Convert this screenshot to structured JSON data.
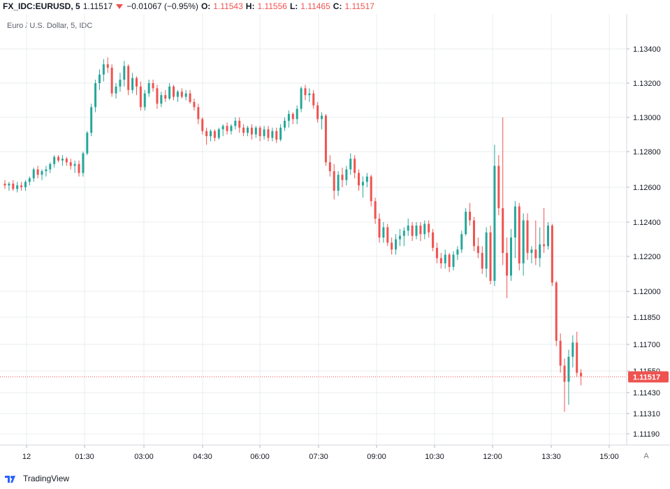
{
  "header": {
    "symbol": "FX_IDC:EURUSD, 5",
    "last": "1.11517",
    "change": "−0.01067 (−0.95%)",
    "o_label": "O:",
    "o_value": "1.11543",
    "h_label": "H:",
    "h_value": "1.11556",
    "l_label": "L:",
    "l_value": "1.11465",
    "c_label": "C:",
    "c_value": "1.11517"
  },
  "subtitle": "Euro / U.S. Dollar, 5, IDC",
  "footer": {
    "brand": "TradingView"
  },
  "controls": {
    "auto_scale": "A"
  },
  "colors": {
    "up": "#26a69a",
    "down": "#ef5350",
    "grid": "#e9ecef",
    "axis_text": "#131722",
    "price_label_bg": "#ef5350"
  },
  "chart_data": {
    "type": "candlestick",
    "symbol": "EURUSD",
    "interval": "5",
    "y_ticks": [
      {
        "value": 1.134,
        "label": "1.13400"
      },
      {
        "value": 1.132,
        "label": "1.13200"
      },
      {
        "value": 1.13,
        "label": "1.13000"
      },
      {
        "value": 1.128,
        "label": "1.12800"
      },
      {
        "value": 1.126,
        "label": "1.12600"
      },
      {
        "value": 1.124,
        "label": "1.12400"
      },
      {
        "value": 1.122,
        "label": "1.12200"
      },
      {
        "value": 1.12,
        "label": "1.12000"
      },
      {
        "value": 1.1185,
        "label": "1.11850"
      },
      {
        "value": 1.117,
        "label": "1.11700"
      },
      {
        "value": 1.1155,
        "label": "1.11550"
      },
      {
        "value": 1.1143,
        "label": "1.11430"
      },
      {
        "value": 1.1131,
        "label": "1.11310"
      },
      {
        "value": 1.1119,
        "label": "1.11190"
      }
    ],
    "x_ticks": [
      "12",
      "01:30",
      "03:00",
      "04:30",
      "06:00",
      "07:30",
      "09:00",
      "10:30",
      "12:00",
      "13:30",
      "15:00"
    ],
    "last_price": {
      "value": 1.11517,
      "label": "1.11517"
    },
    "candles": [
      [
        1.1262,
        1.1264,
        1.1259,
        1.1261
      ],
      [
        1.1261,
        1.1263,
        1.1258,
        1.1262
      ],
      [
        1.1262,
        1.1264,
        1.1258,
        1.1259
      ],
      [
        1.1259,
        1.1263,
        1.1257,
        1.1261
      ],
      [
        1.1261,
        1.1263,
        1.1258,
        1.126
      ],
      [
        1.126,
        1.1264,
        1.1258,
        1.1263
      ],
      [
        1.1263,
        1.1266,
        1.1261,
        1.1265
      ],
      [
        1.1265,
        1.1271,
        1.1263,
        1.127
      ],
      [
        1.127,
        1.1272,
        1.1265,
        1.1267
      ],
      [
        1.1267,
        1.127,
        1.1264,
        1.1269
      ],
      [
        1.1269,
        1.1272,
        1.1266,
        1.127
      ],
      [
        1.127,
        1.1274,
        1.1268,
        1.1273
      ],
      [
        1.1273,
        1.1278,
        1.1271,
        1.1277
      ],
      [
        1.1277,
        1.1278,
        1.1274,
        1.1275
      ],
      [
        1.1275,
        1.1278,
        1.1272,
        1.1276
      ],
      [
        1.1276,
        1.1277,
        1.1272,
        1.1274
      ],
      [
        1.1274,
        1.1276,
        1.127,
        1.1272
      ],
      [
        1.1272,
        1.1275,
        1.1268,
        1.1273
      ],
      [
        1.1273,
        1.1275,
        1.1266,
        1.1268
      ],
      [
        1.1268,
        1.128,
        1.1266,
        1.1279
      ],
      [
        1.1279,
        1.1292,
        1.1278,
        1.1291
      ],
      [
        1.1291,
        1.1308,
        1.1289,
        1.1306
      ],
      [
        1.1306,
        1.1322,
        1.1303,
        1.132
      ],
      [
        1.132,
        1.1328,
        1.1316,
        1.1325
      ],
      [
        1.1325,
        1.1334,
        1.1321,
        1.1331
      ],
      [
        1.1331,
        1.1335,
        1.1326,
        1.1329
      ],
      [
        1.1329,
        1.1331,
        1.1312,
        1.1314
      ],
      [
        1.1314,
        1.132,
        1.1311,
        1.1318
      ],
      [
        1.1318,
        1.1326,
        1.1315,
        1.1322
      ],
      [
        1.1322,
        1.1333,
        1.1318,
        1.133
      ],
      [
        1.133,
        1.1331,
        1.1313,
        1.1316
      ],
      [
        1.1316,
        1.1326,
        1.1314,
        1.1323
      ],
      [
        1.1323,
        1.1324,
        1.1313,
        1.1318
      ],
      [
        1.1318,
        1.1321,
        1.1304,
        1.1306
      ],
      [
        1.1306,
        1.1316,
        1.1304,
        1.1314
      ],
      [
        1.1314,
        1.1322,
        1.1312,
        1.132
      ],
      [
        1.132,
        1.1322,
        1.1315,
        1.1317
      ],
      [
        1.1317,
        1.1319,
        1.1305,
        1.1308
      ],
      [
        1.1308,
        1.1315,
        1.1306,
        1.1313
      ],
      [
        1.1313,
        1.1316,
        1.1309,
        1.1311
      ],
      [
        1.1311,
        1.132,
        1.131,
        1.1318
      ],
      [
        1.1318,
        1.1319,
        1.131,
        1.1312
      ],
      [
        1.1312,
        1.1316,
        1.1309,
        1.1315
      ],
      [
        1.1315,
        1.1317,
        1.1311,
        1.1312
      ],
      [
        1.1312,
        1.1316,
        1.131,
        1.1314
      ],
      [
        1.1314,
        1.1316,
        1.1308,
        1.1309
      ],
      [
        1.1309,
        1.1311,
        1.1304,
        1.1306
      ],
      [
        1.1306,
        1.1308,
        1.1296,
        1.1299
      ],
      [
        1.1299,
        1.13,
        1.129,
        1.1292
      ],
      [
        1.1292,
        1.1294,
        1.1284,
        1.1289
      ],
      [
        1.1289,
        1.1293,
        1.1286,
        1.1292
      ],
      [
        1.1292,
        1.1293,
        1.1286,
        1.1288
      ],
      [
        1.1288,
        1.1294,
        1.1287,
        1.1293
      ],
      [
        1.1293,
        1.1296,
        1.1289,
        1.1295
      ],
      [
        1.1295,
        1.1297,
        1.129,
        1.1292
      ],
      [
        1.1292,
        1.1296,
        1.129,
        1.1295
      ],
      [
        1.1295,
        1.13,
        1.1293,
        1.1298
      ],
      [
        1.1298,
        1.13,
        1.1291,
        1.1294
      ],
      [
        1.1294,
        1.1296,
        1.1289,
        1.1291
      ],
      [
        1.1291,
        1.1295,
        1.1289,
        1.1294
      ],
      [
        1.1294,
        1.1296,
        1.1287,
        1.129
      ],
      [
        1.129,
        1.1295,
        1.1288,
        1.1294
      ],
      [
        1.1294,
        1.1295,
        1.1286,
        1.1289
      ],
      [
        1.1289,
        1.1295,
        1.1287,
        1.1293
      ],
      [
        1.1293,
        1.1295,
        1.1286,
        1.1288
      ],
      [
        1.1288,
        1.1294,
        1.1286,
        1.1292
      ],
      [
        1.1292,
        1.1294,
        1.1285,
        1.1287
      ],
      [
        1.1287,
        1.1296,
        1.1286,
        1.1294
      ],
      [
        1.1294,
        1.13,
        1.1292,
        1.1298
      ],
      [
        1.1298,
        1.1304,
        1.1294,
        1.1302
      ],
      [
        1.1302,
        1.1303,
        1.1296,
        1.1299
      ],
      [
        1.1299,
        1.1307,
        1.1296,
        1.1305
      ],
      [
        1.1305,
        1.1318,
        1.1303,
        1.1317
      ],
      [
        1.1317,
        1.1319,
        1.131,
        1.1313
      ],
      [
        1.1313,
        1.1317,
        1.1309,
        1.1314
      ],
      [
        1.1314,
        1.1316,
        1.1305,
        1.1307
      ],
      [
        1.1307,
        1.1309,
        1.1297,
        1.1299
      ],
      [
        1.1299,
        1.1303,
        1.1293,
        1.1301
      ],
      [
        1.1301,
        1.1302,
        1.1272,
        1.1274
      ],
      [
        1.1274,
        1.1278,
        1.1266,
        1.1269
      ],
      [
        1.1269,
        1.1273,
        1.1253,
        1.1258
      ],
      [
        1.1258,
        1.1269,
        1.1255,
        1.1267
      ],
      [
        1.1267,
        1.1271,
        1.126,
        1.1264
      ],
      [
        1.1264,
        1.1272,
        1.1261,
        1.127
      ],
      [
        1.127,
        1.1279,
        1.1267,
        1.1276
      ],
      [
        1.1276,
        1.1278,
        1.1265,
        1.1268
      ],
      [
        1.1268,
        1.127,
        1.1258,
        1.1261
      ],
      [
        1.1261,
        1.1266,
        1.1254,
        1.1263
      ],
      [
        1.1263,
        1.1268,
        1.126,
        1.1266
      ],
      [
        1.1266,
        1.1267,
        1.1249,
        1.1252
      ],
      [
        1.1252,
        1.1254,
        1.1239,
        1.1242
      ],
      [
        1.1242,
        1.1245,
        1.1228,
        1.1231
      ],
      [
        1.1231,
        1.124,
        1.1228,
        1.1237
      ],
      [
        1.1237,
        1.1239,
        1.1226,
        1.1228
      ],
      [
        1.1228,
        1.1231,
        1.1221,
        1.1224
      ],
      [
        1.1224,
        1.1233,
        1.1221,
        1.123
      ],
      [
        1.123,
        1.1236,
        1.1226,
        1.1232
      ],
      [
        1.1232,
        1.1237,
        1.1226,
        1.1235
      ],
      [
        1.1235,
        1.1242,
        1.1232,
        1.1238
      ],
      [
        1.1238,
        1.124,
        1.1229,
        1.1232
      ],
      [
        1.1232,
        1.124,
        1.123,
        1.1238
      ],
      [
        1.1238,
        1.124,
        1.1229,
        1.1233
      ],
      [
        1.1233,
        1.1241,
        1.123,
        1.1239
      ],
      [
        1.1239,
        1.1241,
        1.1231,
        1.1234
      ],
      [
        1.1234,
        1.1236,
        1.1223,
        1.1225
      ],
      [
        1.1225,
        1.1228,
        1.1216,
        1.1219
      ],
      [
        1.1219,
        1.1222,
        1.1213,
        1.1216
      ],
      [
        1.1216,
        1.1224,
        1.1213,
        1.1221
      ],
      [
        1.1221,
        1.1222,
        1.1211,
        1.1214
      ],
      [
        1.1214,
        1.1223,
        1.1212,
        1.1221
      ],
      [
        1.1221,
        1.1226,
        1.1218,
        1.1224
      ],
      [
        1.1224,
        1.1235,
        1.1222,
        1.1233
      ],
      [
        1.1233,
        1.1248,
        1.1232,
        1.1246
      ],
      [
        1.1246,
        1.1251,
        1.1238,
        1.1241
      ],
      [
        1.1241,
        1.1243,
        1.1223,
        1.1226
      ],
      [
        1.1226,
        1.1231,
        1.1219,
        1.1222
      ],
      [
        1.1222,
        1.1226,
        1.121,
        1.1213
      ],
      [
        1.1213,
        1.1237,
        1.1208,
        1.1234
      ],
      [
        1.1234,
        1.1238,
        1.1204,
        1.1206
      ],
      [
        1.1206,
        1.1284,
        1.1203,
        1.1272
      ],
      [
        1.1272,
        1.1278,
        1.1244,
        1.1248
      ],
      [
        1.1248,
        1.13,
        1.1215,
        1.1222
      ],
      [
        1.1222,
        1.1231,
        1.1196,
        1.1209
      ],
      [
        1.1209,
        1.1236,
        1.1206,
        1.1231
      ],
      [
        1.1231,
        1.1252,
        1.1219,
        1.1249
      ],
      [
        1.1249,
        1.1251,
        1.1212,
        1.1216
      ],
      [
        1.1216,
        1.1245,
        1.1209,
        1.1241
      ],
      [
        1.1241,
        1.1245,
        1.1218,
        1.1222
      ],
      [
        1.1222,
        1.1226,
        1.1216,
        1.1224
      ],
      [
        1.1224,
        1.1241,
        1.1215,
        1.1219
      ],
      [
        1.1219,
        1.1237,
        1.1214,
        1.1227
      ],
      [
        1.1227,
        1.1248,
        1.1222,
        1.1226
      ],
      [
        1.1226,
        1.124,
        1.1224,
        1.1238
      ],
      [
        1.1238,
        1.1239,
        1.1203,
        1.1205
      ],
      [
        1.1205,
        1.1206,
        1.1169,
        1.1172
      ],
      [
        1.1172,
        1.1176,
        1.1154,
        1.1158
      ],
      [
        1.1158,
        1.1162,
        1.1132,
        1.1149
      ],
      [
        1.1149,
        1.1167,
        1.1136,
        1.1163
      ],
      [
        1.1163,
        1.1175,
        1.1157,
        1.1171
      ],
      [
        1.1171,
        1.1177,
        1.1152,
        1.1154
      ],
      [
        1.1154,
        1.1156,
        1.1147,
        1.1152
      ]
    ]
  }
}
